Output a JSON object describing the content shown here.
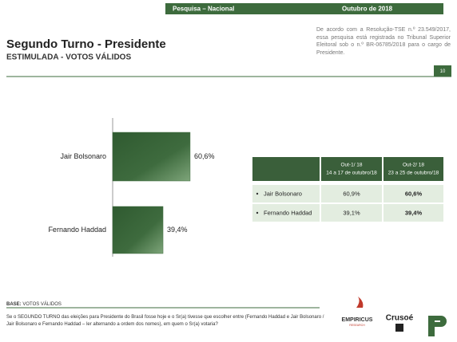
{
  "header": {
    "section": "Pesquisa – Nacional",
    "date": "Outubro de 2018",
    "page": "10"
  },
  "disclaimer": "De acordo com a Resolução-TSE n.º 23.549/2017, essa pesquisa está registrada no Tribunal Superior Eleitoral sob o n.º BR-06785/2018 para o cargo de Presidente.",
  "chart_data": {
    "type": "hbar",
    "title": "Segundo Turno - Presidente",
    "subtitle": "ESTIMULADA - VOTOS VÁLIDOS",
    "categories": [
      "Jair Bolsonaro",
      "Fernando Haddad"
    ],
    "values": [
      60.6,
      39.4
    ],
    "value_labels": [
      "60,6%",
      "39,4%"
    ],
    "color": "#3e6b3e"
  },
  "table": {
    "columns": [
      {
        "title": "Out-1/ 18",
        "sub": "14 a 17 de outubro/18"
      },
      {
        "title": "Out-2/ 18",
        "sub": "23 a 25 de outubro/18"
      }
    ],
    "rows": [
      [
        "Jair Bolsonaro",
        "60,9%",
        "60,6%"
      ],
      [
        "Fernando Haddad",
        "39,1%",
        "39,4%"
      ]
    ]
  },
  "footer": {
    "base_label": "BASE:",
    "base_value": "VOTOS VÁLIDOS",
    "question": "Se o SEGUNDO TURNO das eleições para Presidente do Brasil fosse hoje e o Sr(a) tivesse que escolher entre (Fernando Haddad e Jair Bolsonaro / Jair Bolsonaro e Fernando Haddad – ler alternando a ordem dos nomes), em quem o Sr(a) votaria?"
  },
  "logos": {
    "empiricus": "EMPIRICUS",
    "empiricus_sub": "RESEARCH",
    "crusoe": "Crusoé"
  }
}
